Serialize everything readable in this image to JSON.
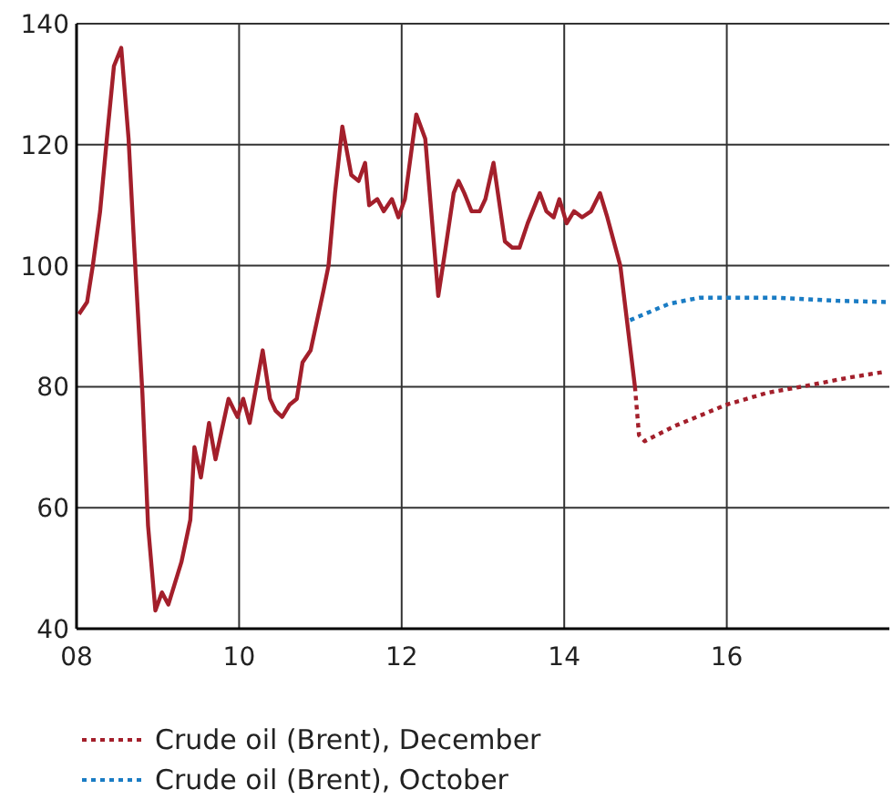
{
  "chart_data": {
    "type": "line",
    "xlim": [
      8,
      18
    ],
    "ylim": [
      40,
      140
    ],
    "xticks": [
      {
        "value": 8,
        "label": "08"
      },
      {
        "value": 10,
        "label": "10"
      },
      {
        "value": 12,
        "label": "12"
      },
      {
        "value": 14,
        "label": "14"
      },
      {
        "value": 16,
        "label": "16"
      }
    ],
    "yticks": [
      40,
      60,
      80,
      100,
      120,
      140
    ],
    "grid": true,
    "legend": "bottom",
    "series": [
      {
        "color": "#a31f2b",
        "line_style": "solid",
        "x": [
          8.03,
          8.13,
          8.2,
          8.29,
          8.38,
          8.46,
          8.55,
          8.64,
          8.71,
          8.81,
          8.88,
          8.97,
          9.05,
          9.13,
          9.29,
          9.4,
          9.45,
          9.53,
          9.63,
          9.71,
          9.87,
          9.98,
          10.05,
          10.13,
          10.29,
          10.38,
          10.45,
          10.53,
          10.62,
          10.71,
          10.78,
          10.88,
          10.96,
          11.04,
          11.1,
          11.18,
          11.27,
          11.38,
          11.47,
          11.55,
          11.6,
          11.7,
          11.78,
          11.88,
          11.96,
          12.04,
          12.18,
          12.29,
          12.45,
          12.53,
          12.64,
          12.7,
          12.77,
          12.86,
          12.96,
          13.03,
          13.13,
          13.27,
          13.36,
          13.45,
          13.55,
          13.7,
          13.78,
          13.87,
          13.94,
          14.03,
          14.12,
          14.22,
          14.33,
          14.44,
          14.53,
          14.69,
          14.87
        ],
        "values": [
          92,
          94,
          100,
          109,
          122,
          133,
          136,
          121,
          103,
          79,
          57,
          43,
          46,
          44,
          51,
          58,
          70,
          65,
          74,
          68,
          78,
          75,
          78,
          74,
          86,
          78,
          76,
          75,
          77,
          78,
          84,
          86,
          91,
          96,
          100,
          112,
          123,
          115,
          114,
          117,
          110,
          111,
          109,
          111,
          108,
          111,
          125,
          121,
          95,
          102,
          112,
          114,
          112,
          109,
          109,
          111,
          117,
          104,
          103,
          103,
          107,
          112,
          109,
          108,
          111,
          107,
          109,
          108,
          109,
          112,
          108,
          100,
          80
        ]
      },
      {
        "name": "Crude oil (Brent), December",
        "color": "#a31f2b",
        "line_style": "dotted",
        "x": [
          14.87,
          14.92,
          14.99,
          15.36,
          15.99,
          16.5,
          16.92,
          17.5,
          17.96
        ],
        "values": [
          80,
          72,
          71,
          73.5,
          77,
          79,
          80,
          81.5,
          82.5
        ]
      },
      {
        "name": "Crude oil (Brent), October",
        "color": "#1a7cc4",
        "line_style": "dotted",
        "x": [
          14.81,
          15.29,
          15.66,
          15.99,
          16.62,
          17.36,
          17.96
        ],
        "values": [
          91,
          93.7,
          94.7,
          94.7,
          94.7,
          94.2,
          94
        ]
      }
    ]
  }
}
